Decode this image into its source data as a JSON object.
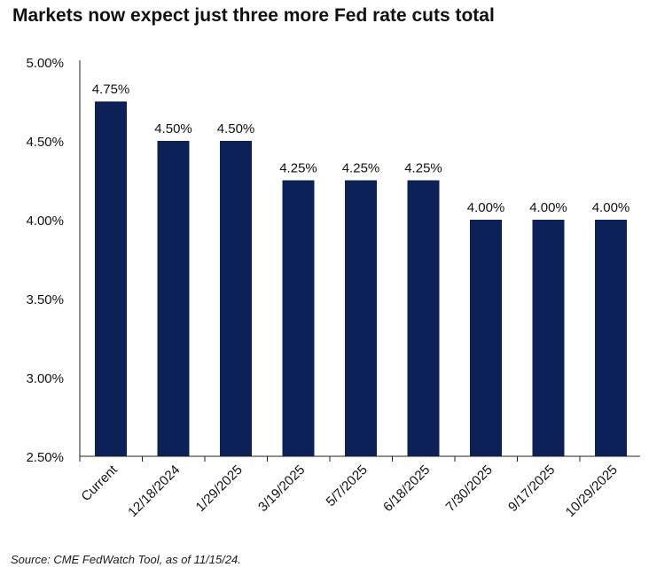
{
  "colors": {
    "bar": "#0b2157",
    "axis": "#222222",
    "text": "#111111"
  },
  "chart_data": {
    "type": "bar",
    "title": "Markets now expect just three more Fed rate cuts total",
    "xlabel": "",
    "ylabel": "",
    "categories": [
      "Current",
      "12/18/2024",
      "1/29/2025",
      "3/19/2025",
      "5/7/2025",
      "6/18/2025",
      "7/30/2025",
      "9/17/2025",
      "10/29/2025"
    ],
    "values": [
      4.75,
      4.5,
      4.5,
      4.25,
      4.25,
      4.25,
      4.0,
      4.0,
      4.0
    ],
    "data_labels": [
      "4.75%",
      "4.50%",
      "4.50%",
      "4.25%",
      "4.25%",
      "4.25%",
      "4.00%",
      "4.00%",
      "4.00%"
    ],
    "ylim": [
      2.5,
      5.0
    ],
    "yticks": [
      2.5,
      3.0,
      3.5,
      4.0,
      4.5,
      5.0
    ],
    "ytick_labels": [
      "2.50%",
      "3.00%",
      "3.50%",
      "4.00%",
      "4.50%",
      "5.00%"
    ],
    "grid": false,
    "legend": "none"
  },
  "source": "Source: CME FedWatch Tool, as of 11/15/24."
}
